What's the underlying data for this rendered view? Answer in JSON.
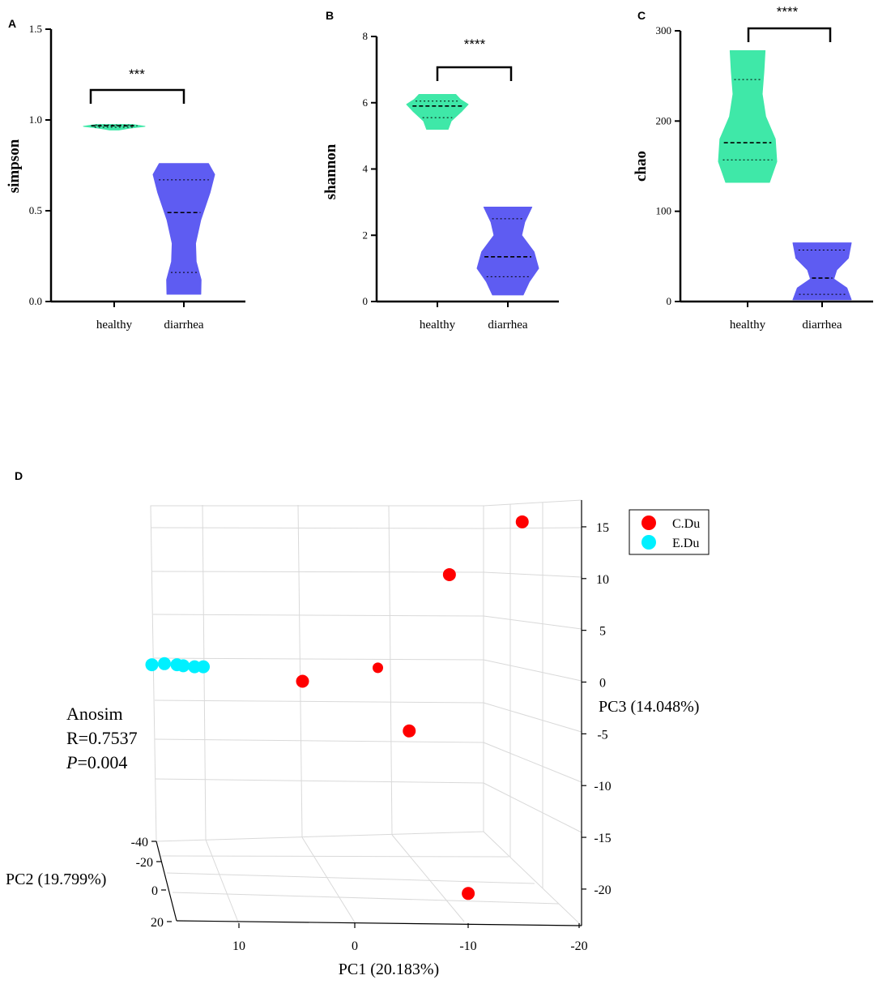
{
  "colors": {
    "healthy": "#3fe8a8",
    "diarrhea": "#5e5cf2",
    "cdu": "#ff0000",
    "edu": "#00f0ff"
  },
  "chart_data": [
    {
      "panel": "A",
      "type": "violin",
      "ylabel": "simpson",
      "ylim": [
        0,
        1.5
      ],
      "yticks": [
        0.0,
        0.5,
        1.0,
        1.5
      ],
      "ytick_labels": [
        "0.0",
        "0.5",
        "1.0",
        "1.5"
      ],
      "categories": [
        "healthy",
        "diarrhea"
      ],
      "significance": "***",
      "series": [
        {
          "name": "healthy",
          "min": 0.945,
          "q1": 0.96,
          "median": 0.968,
          "q3": 0.972,
          "max": 0.975,
          "profile": [
            [
              0.945,
              0.15
            ],
            [
              0.955,
              0.5
            ],
            [
              0.965,
              1.0
            ],
            [
              0.975,
              0.6
            ]
          ]
        },
        {
          "name": "diarrhea",
          "min": 0.04,
          "q1": 0.16,
          "median": 0.49,
          "q3": 0.67,
          "max": 0.76,
          "profile": [
            [
              0.04,
              0.55
            ],
            [
              0.12,
              0.56
            ],
            [
              0.22,
              0.4
            ],
            [
              0.32,
              0.38
            ],
            [
              0.45,
              0.55
            ],
            [
              0.6,
              0.85
            ],
            [
              0.7,
              1.0
            ],
            [
              0.76,
              0.8
            ]
          ]
        }
      ]
    },
    {
      "panel": "B",
      "type": "violin",
      "ylabel": "shannon",
      "ylim": [
        0,
        8
      ],
      "yticks": [
        0,
        2,
        4,
        6,
        8
      ],
      "ytick_labels": [
        "0",
        "2",
        "4",
        "6",
        "8"
      ],
      "categories": [
        "healthy",
        "diarrhea"
      ],
      "significance": "****",
      "series": [
        {
          "name": "healthy",
          "min": 5.2,
          "q1": 5.55,
          "median": 5.9,
          "q3": 6.05,
          "max": 6.25,
          "profile": [
            [
              5.2,
              0.35
            ],
            [
              5.45,
              0.45
            ],
            [
              5.75,
              0.8
            ],
            [
              5.95,
              1.0
            ],
            [
              6.1,
              0.75
            ],
            [
              6.25,
              0.6
            ]
          ]
        },
        {
          "name": "diarrhea",
          "min": 0.2,
          "q1": 0.75,
          "median": 1.35,
          "q3": 2.5,
          "max": 2.85,
          "profile": [
            [
              0.2,
              0.5
            ],
            [
              0.6,
              0.7
            ],
            [
              1.0,
              1.0
            ],
            [
              1.5,
              0.85
            ],
            [
              2.0,
              0.45
            ],
            [
              2.4,
              0.55
            ],
            [
              2.85,
              0.78
            ]
          ]
        }
      ]
    },
    {
      "panel": "C",
      "type": "violin",
      "ylabel": "chao",
      "ylim": [
        0,
        300
      ],
      "yticks": [
        0,
        100,
        200,
        300
      ],
      "ytick_labels": [
        "0",
        "100",
        "200",
        "300"
      ],
      "categories": [
        "healthy",
        "diarrhea"
      ],
      "significance": "****",
      "series": [
        {
          "name": "healthy",
          "min": 132,
          "q1": 157,
          "median": 176,
          "q3": 246,
          "max": 278,
          "profile": [
            [
              132,
              0.75
            ],
            [
              155,
              1.0
            ],
            [
              180,
              0.95
            ],
            [
              205,
              0.62
            ],
            [
              230,
              0.5
            ],
            [
              255,
              0.56
            ],
            [
              278,
              0.6
            ]
          ]
        },
        {
          "name": "diarrhea",
          "min": 2,
          "q1": 8,
          "median": 26,
          "q3": 57,
          "max": 65,
          "profile": [
            [
              2,
              1.0
            ],
            [
              15,
              0.85
            ],
            [
              25,
              0.4
            ],
            [
              35,
              0.5
            ],
            [
              48,
              0.9
            ],
            [
              65,
              1.0
            ]
          ]
        }
      ]
    },
    {
      "panel": "D",
      "type": "scatter3d",
      "xlabel": "PC1 (20.183%)",
      "ylabel": "PC2 (19.799%)",
      "zlabel": "PC3 (14.048%)",
      "x_ticks": [
        10,
        0,
        -10,
        -20
      ],
      "x_tick_labels": [
        "10",
        "0",
        "-10",
        "-20"
      ],
      "y_ticks": [
        -40,
        -20,
        0,
        20
      ],
      "y_tick_labels": [
        "-40",
        "-20",
        "0",
        "20"
      ],
      "z_ticks": [
        15,
        10,
        5,
        0,
        -5,
        -10,
        -15,
        -20
      ],
      "z_tick_labels": [
        "15",
        "10",
        "5",
        "0",
        "-5",
        "-10",
        "-15",
        "-20"
      ],
      "legend": [
        {
          "name": "C.Du",
          "color": "#ff0000"
        },
        {
          "name": "E.Du",
          "color": "#00f0ff"
        }
      ],
      "annotation": {
        "title": "Anosim",
        "r": "R=0.7537",
        "p_symbol": "P",
        "p_value": "=0.004"
      },
      "series": [
        {
          "name": "C.Du",
          "points": [
            {
              "pc1": -14.5,
              "pc3": 15.4
            },
            {
              "pc1": -8.7,
              "pc3": 10.3
            },
            {
              "pc1": -3.0,
              "pc3": 1.3
            },
            {
              "pc1": 3.0,
              "pc3": 0.0
            },
            {
              "pc1": -5.5,
              "pc3": -4.8
            },
            {
              "pc1": -10.2,
              "pc3": -20.5
            }
          ]
        },
        {
          "name": "E.Du",
          "points": [
            {
              "pc1": 15.0,
              "pc3": 1.6
            },
            {
              "pc1": 14.0,
              "pc3": 1.7
            },
            {
              "pc1": 13.0,
              "pc3": 1.6
            },
            {
              "pc1": 12.5,
              "pc3": 1.5
            },
            {
              "pc1": 11.6,
              "pc3": 1.4
            },
            {
              "pc1": 10.9,
              "pc3": 1.4
            }
          ]
        }
      ]
    }
  ]
}
